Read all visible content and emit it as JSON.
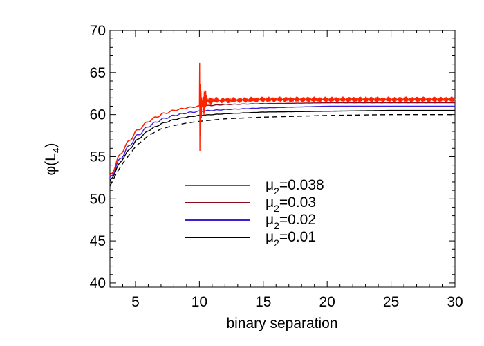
{
  "chart_data": {
    "type": "line",
    "xlabel": "binary separation",
    "ylabel": "φ(L₄)",
    "ylabel_parts": {
      "symbol": "φ(L",
      "subscript": "4",
      "close": ")"
    },
    "xlim": [
      3,
      30
    ],
    "ylim": [
      39.5,
      70
    ],
    "x_ticks": [
      "5",
      "10",
      "15",
      "20",
      "25",
      "30"
    ],
    "y_ticks": [
      "40",
      "45",
      "50",
      "55",
      "60",
      "65",
      "70"
    ],
    "legend_position": "center",
    "series": [
      {
        "name": "μ2=0.038",
        "label_parts": {
          "symbol": "μ",
          "subscript": "2",
          "value": "=0.038"
        },
        "color": "#ff2200",
        "style": "solid",
        "oscillating_from": 10,
        "x": [
          3,
          3.5,
          4,
          5,
          6,
          7,
          8,
          9,
          10,
          10.5,
          11,
          12,
          15,
          20,
          25,
          30
        ],
        "y": [
          52.5,
          54.3,
          55.8,
          57.9,
          59.2,
          60.0,
          60.5,
          60.8,
          61.0,
          61.6,
          61.7,
          61.7,
          61.8,
          61.8,
          61.8,
          61.8
        ]
      },
      {
        "name": "μ2=0.03",
        "label_parts": {
          "symbol": "μ",
          "subscript": "2",
          "value": "=0.03"
        },
        "color": "#8b0a1e",
        "style": "solid",
        "x": [
          3,
          3.5,
          4,
          5,
          6,
          7,
          8,
          9,
          10,
          12,
          15,
          20,
          25,
          30
        ],
        "y": [
          52.5,
          54.3,
          55.8,
          57.9,
          59.2,
          60.0,
          60.5,
          60.8,
          61.0,
          61.2,
          61.3,
          61.4,
          61.4,
          61.4
        ]
      },
      {
        "name": "μ2=0.02",
        "label_parts": {
          "symbol": "μ",
          "subscript": "2",
          "value": "=0.02"
        },
        "color": "#3a1ed8",
        "style": "solid",
        "x": [
          3,
          3.5,
          4,
          5,
          6,
          7,
          8,
          9,
          10,
          12,
          15,
          20,
          25,
          30
        ],
        "y": [
          52.3,
          53.9,
          55.2,
          57.3,
          58.6,
          59.4,
          59.9,
          60.2,
          60.4,
          60.6,
          60.8,
          61.0,
          61.0,
          61.0
        ]
      },
      {
        "name": "μ2=0.01",
        "label_parts": {
          "symbol": "μ",
          "subscript": "2",
          "value": "=0.01"
        },
        "color": "#000000",
        "style": "solid",
        "x": [
          3,
          3.5,
          4,
          5,
          6,
          7,
          8,
          9,
          10,
          12,
          15,
          20,
          25,
          30
        ],
        "y": [
          52.0,
          53.5,
          54.8,
          56.8,
          58.1,
          58.9,
          59.4,
          59.7,
          59.9,
          60.1,
          60.3,
          60.4,
          60.5,
          60.5
        ]
      },
      {
        "name": "",
        "color": "#000000",
        "style": "dashed",
        "x": [
          3,
          3.5,
          4,
          5,
          6,
          7,
          8,
          9,
          10,
          12,
          15,
          20,
          25,
          30
        ],
        "y": [
          51.5,
          53.0,
          54.2,
          56.2,
          57.5,
          58.3,
          58.7,
          59.0,
          59.2,
          59.5,
          59.7,
          59.9,
          60.0,
          60.0
        ]
      }
    ]
  }
}
